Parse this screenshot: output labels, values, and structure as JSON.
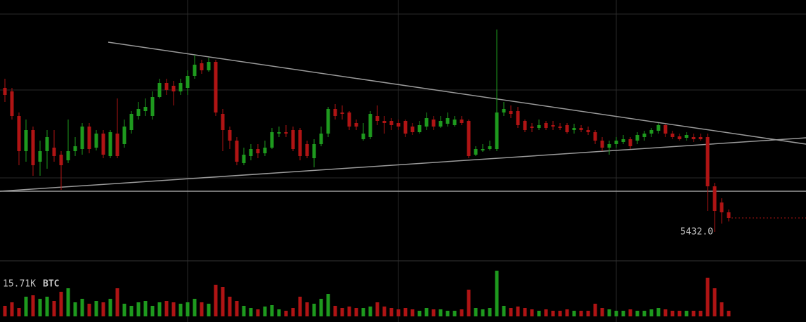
{
  "chart_data": {
    "type": "candlestick",
    "open": [
      6457,
      6432,
      6257,
      6007,
      6157,
      5932,
      6007,
      6032,
      5982,
      5942,
      6007,
      6022,
      6182,
      6032,
      6132,
      5972,
      6132,
      6057,
      6157,
      6257,
      6292,
      6257,
      6392,
      6492,
      6472,
      6432,
      6457,
      6542,
      6632,
      6582,
      6642,
      6272,
      6157,
      6082,
      5922,
      5972,
      6022,
      5992,
      6032,
      6132,
      6142,
      6157,
      6157,
      6057,
      5957,
      6057,
      6132,
      6307,
      6282,
      6282,
      6207,
      6092,
      6107,
      6257,
      6222,
      6222,
      6207,
      6222,
      6182,
      6142,
      6182,
      6232,
      6182,
      6202,
      6192,
      6232,
      6222,
      5982,
      6012,
      6022,
      6022,
      6282,
      6292,
      6292,
      6222,
      6182,
      6172,
      6207,
      6192,
      6182,
      6192,
      6157,
      6172,
      6157,
      6142,
      6082,
      6032,
      6057,
      6072,
      6092,
      6082,
      6107,
      6132,
      6152,
      6192,
      6132,
      6112,
      6102,
      6107,
      6107,
      6107,
      5757,
      5642,
      5572
    ],
    "high": [
      6522,
      6457,
      6282,
      6232,
      6182,
      6082,
      6157,
      6157,
      6007,
      6232,
      6107,
      6207,
      6207,
      6157,
      6157,
      6157,
      6382,
      6232,
      6292,
      6357,
      6382,
      6432,
      6522,
      6522,
      6507,
      6522,
      6582,
      6692,
      6657,
      6672,
      6657,
      6307,
      6182,
      6107,
      6032,
      6057,
      6057,
      6082,
      6172,
      6182,
      6192,
      6182,
      6172,
      6082,
      6092,
      6182,
      6322,
      6342,
      6332,
      6292,
      6232,
      6207,
      6292,
      6332,
      6257,
      6242,
      6232,
      6232,
      6207,
      6222,
      6282,
      6257,
      6257,
      6282,
      6257,
      6257,
      6232,
      6042,
      6057,
      6082,
      6872,
      6357,
      6332,
      6322,
      6232,
      6207,
      6232,
      6222,
      6222,
      6207,
      6207,
      6202,
      6192,
      6182,
      6157,
      6107,
      6082,
      6107,
      6122,
      6107,
      6142,
      6152,
      6172,
      6207,
      6202,
      6152,
      6132,
      6142,
      6132,
      6132,
      6132,
      5782,
      5672,
      5592
    ],
    "low": [
      6357,
      6232,
      5907,
      5932,
      5832,
      5832,
      5882,
      5932,
      5732,
      5922,
      5972,
      5982,
      5992,
      6012,
      5957,
      5957,
      5957,
      6032,
      6132,
      6232,
      6257,
      6232,
      6382,
      6407,
      6332,
      6407,
      6407,
      6522,
      6557,
      6572,
      6257,
      6007,
      6022,
      5907,
      5907,
      5942,
      5957,
      5972,
      6022,
      6107,
      6107,
      6007,
      5942,
      5957,
      5892,
      6042,
      6107,
      6232,
      6232,
      6157,
      6157,
      6082,
      6092,
      6192,
      6132,
      6157,
      6157,
      6107,
      6122,
      6132,
      6157,
      6157,
      6172,
      6182,
      6182,
      6192,
      5957,
      5972,
      6002,
      6012,
      6007,
      6257,
      6242,
      6172,
      6142,
      6142,
      6157,
      6157,
      6157,
      6157,
      6132,
      6132,
      6142,
      6122,
      6057,
      6007,
      5982,
      6032,
      6057,
      6022,
      6057,
      6082,
      6107,
      6132,
      6107,
      6092,
      6082,
      6082,
      6072,
      6082,
      5582,
      5432,
      5492,
      5507
    ],
    "close": [
      6407,
      6257,
      6007,
      6157,
      5907,
      6007,
      6107,
      5972,
      5907,
      6007,
      6042,
      6182,
      6022,
      6132,
      5982,
      6142,
      5972,
      6182,
      6272,
      6307,
      6322,
      6392,
      6492,
      6442,
      6432,
      6492,
      6542,
      6622,
      6582,
      6642,
      6282,
      6157,
      6082,
      5932,
      5982,
      6022,
      5992,
      6032,
      6142,
      6142,
      6132,
      6022,
      5972,
      5972,
      6057,
      6132,
      6307,
      6257,
      6272,
      6182,
      6182,
      6132,
      6272,
      6222,
      6207,
      6192,
      6182,
      6132,
      6142,
      6192,
      6242,
      6182,
      6222,
      6242,
      6232,
      6207,
      5972,
      6022,
      6022,
      6042,
      6282,
      6307,
      6272,
      6192,
      6157,
      6172,
      6192,
      6172,
      6182,
      6172,
      6142,
      6172,
      6157,
      6142,
      6082,
      6032,
      6057,
      6082,
      6092,
      6042,
      6122,
      6132,
      6157,
      6192,
      6132,
      6107,
      6092,
      6122,
      6092,
      6092,
      5757,
      5582,
      5572,
      5532
    ],
    "volume": [
      4500,
      6000,
      3600,
      8400,
      9000,
      7500,
      8400,
      6600,
      10500,
      12000,
      6000,
      7500,
      5400,
      6600,
      6000,
      7500,
      12000,
      5400,
      4500,
      6000,
      6600,
      4500,
      6000,
      6600,
      6000,
      5400,
      6000,
      7500,
      6000,
      5400,
      13500,
      12600,
      8400,
      6600,
      4500,
      3600,
      3000,
      4200,
      4800,
      3000,
      2400,
      3600,
      8400,
      6000,
      5400,
      7500,
      9600,
      4500,
      3600,
      4200,
      3600,
      3600,
      4200,
      6000,
      4200,
      3600,
      3000,
      3600,
      3000,
      2400,
      3600,
      3000,
      3000,
      2400,
      2400,
      3000,
      11400,
      3600,
      3000,
      3600,
      19500,
      4500,
      3600,
      4200,
      3600,
      3000,
      2400,
      3000,
      2400,
      2400,
      3000,
      2400,
      2400,
      2400,
      5400,
      3600,
      3000,
      2400,
      2400,
      3000,
      2400,
      2400,
      3000,
      3600,
      3000,
      2400,
      2400,
      2400,
      2400,
      2400,
      16500,
      12000,
      6000,
      2400
    ],
    "colors": {
      "up": "#1e9a1e",
      "down": "#b01414"
    },
    "ylim": [
      5222,
      7082
    ],
    "volume_ylim": [
      0,
      24000
    ],
    "price_label": {
      "value": 5432,
      "label": "5432.0"
    },
    "volume_label": "15.71K",
    "volume_unit": "BTC"
  }
}
